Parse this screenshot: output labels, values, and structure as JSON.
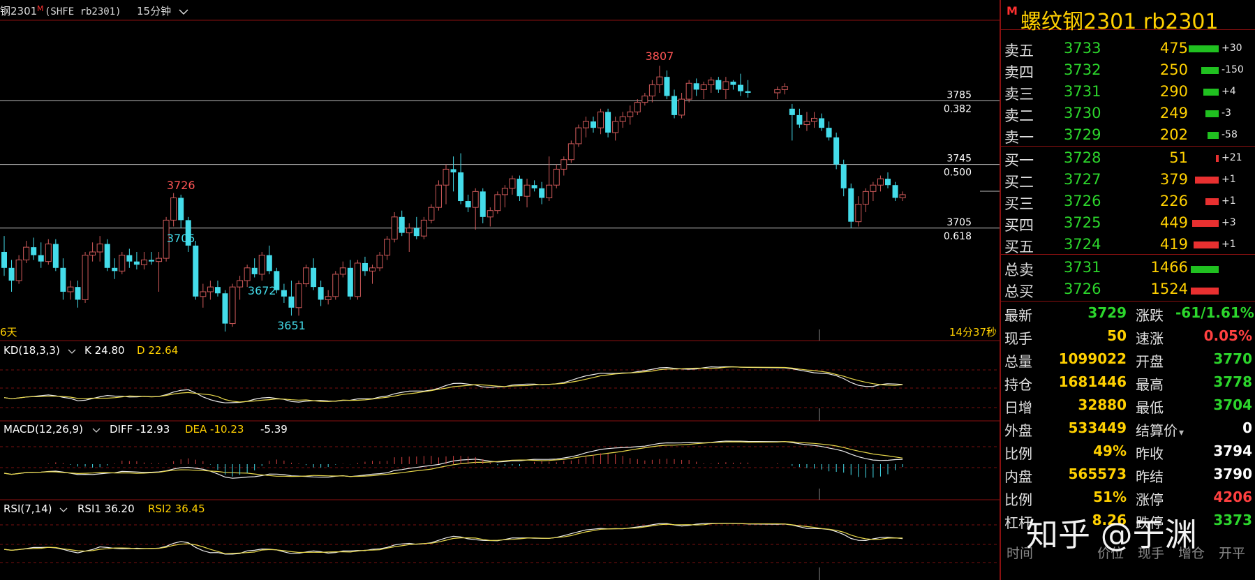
{
  "header": {
    "symbol_label": "钢2301",
    "m_mark": "M",
    "exchange_code": "(SHFE rb2301)",
    "period": "15分钟"
  },
  "main_chart": {
    "price_range": [
      3640,
      3822
    ],
    "candles": [
      [
        3690,
        3700,
        3675,
        3680
      ],
      [
        3680,
        3685,
        3665,
        3672
      ],
      [
        3672,
        3688,
        3670,
        3685
      ],
      [
        3685,
        3697,
        3683,
        3693
      ],
      [
        3693,
        3699,
        3685,
        3688
      ],
      [
        3688,
        3696,
        3680,
        3684
      ],
      [
        3684,
        3698,
        3682,
        3695
      ],
      [
        3695,
        3698,
        3678,
        3680
      ],
      [
        3680,
        3686,
        3660,
        3665
      ],
      [
        3665,
        3672,
        3660,
        3668
      ],
      [
        3668,
        3672,
        3655,
        3660
      ],
      [
        3660,
        3690,
        3658,
        3688
      ],
      [
        3688,
        3696,
        3684,
        3690
      ],
      [
        3690,
        3700,
        3684,
        3695
      ],
      [
        3695,
        3698,
        3678,
        3680
      ],
      [
        3680,
        3686,
        3673,
        3678
      ],
      [
        3678,
        3690,
        3676,
        3688
      ],
      [
        3688,
        3692,
        3680,
        3684
      ],
      [
        3684,
        3690,
        3679,
        3682
      ],
      [
        3682,
        3690,
        3679,
        3685
      ],
      [
        3685,
        3690,
        3682,
        3684
      ],
      [
        3684,
        3690,
        3665,
        3686
      ],
      [
        3686,
        3712,
        3684,
        3710
      ],
      [
        3710,
        3727,
        3706,
        3724
      ],
      [
        3724,
        3726,
        3705,
        3710
      ],
      [
        3710,
        3712,
        3690,
        3694
      ],
      [
        3694,
        3697,
        3660,
        3662
      ],
      [
        3662,
        3670,
        3655,
        3665
      ],
      [
        3665,
        3672,
        3660,
        3668
      ],
      [
        3668,
        3672,
        3662,
        3664
      ],
      [
        3664,
        3666,
        3640,
        3645
      ],
      [
        3645,
        3670,
        3643,
        3668
      ],
      [
        3668,
        3675,
        3660,
        3672
      ],
      [
        3672,
        3682,
        3668,
        3680
      ],
      [
        3680,
        3686,
        3674,
        3676
      ],
      [
        3676,
        3690,
        3672,
        3688
      ],
      [
        3688,
        3694,
        3676,
        3678
      ],
      [
        3678,
        3680,
        3664,
        3666
      ],
      [
        3666,
        3670,
        3658,
        3662
      ],
      [
        3662,
        3672,
        3650,
        3655
      ],
      [
        3655,
        3672,
        3650,
        3670
      ],
      [
        3670,
        3682,
        3668,
        3680
      ],
      [
        3680,
        3686,
        3666,
        3668
      ],
      [
        3668,
        3672,
        3656,
        3660
      ],
      [
        3660,
        3666,
        3657,
        3662
      ],
      [
        3662,
        3678,
        3660,
        3676
      ],
      [
        3676,
        3684,
        3674,
        3680
      ],
      [
        3680,
        3685,
        3660,
        3662
      ],
      [
        3662,
        3685,
        3660,
        3683
      ],
      [
        3683,
        3687,
        3675,
        3678
      ],
      [
        3678,
        3682,
        3670,
        3680
      ],
      [
        3680,
        3690,
        3678,
        3688
      ],
      [
        3688,
        3700,
        3685,
        3698
      ],
      [
        3698,
        3715,
        3696,
        3712
      ],
      [
        3712,
        3716,
        3700,
        3702
      ],
      [
        3702,
        3708,
        3690,
        3705
      ],
      [
        3705,
        3712,
        3698,
        3700
      ],
      [
        3700,
        3712,
        3698,
        3710
      ],
      [
        3710,
        3720,
        3708,
        3718
      ],
      [
        3718,
        3735,
        3716,
        3732
      ],
      [
        3732,
        3745,
        3720,
        3742
      ],
      [
        3742,
        3750,
        3728,
        3740
      ],
      [
        3740,
        3752,
        3720,
        3722
      ],
      [
        3722,
        3726,
        3715,
        3718
      ],
      [
        3718,
        3730,
        3704,
        3728
      ],
      [
        3728,
        3730,
        3708,
        3712
      ],
      [
        3712,
        3718,
        3706,
        3716
      ],
      [
        3716,
        3728,
        3714,
        3726
      ],
      [
        3726,
        3732,
        3718,
        3730
      ],
      [
        3730,
        3738,
        3726,
        3736
      ],
      [
        3736,
        3738,
        3722,
        3725
      ],
      [
        3725,
        3736,
        3718,
        3732
      ],
      [
        3732,
        3735,
        3728,
        3730
      ],
      [
        3730,
        3734,
        3720,
        3724
      ],
      [
        3724,
        3750,
        3722,
        3732
      ],
      [
        3732,
        3745,
        3730,
        3742
      ],
      [
        3742,
        3750,
        3738,
        3748
      ],
      [
        3748,
        3760,
        3746,
        3758
      ],
      [
        3758,
        3770,
        3756,
        3768
      ],
      [
        3768,
        3775,
        3762,
        3772
      ],
      [
        3772,
        3775,
        3765,
        3768
      ],
      [
        3768,
        3780,
        3764,
        3778
      ],
      [
        3778,
        3780,
        3762,
        3765
      ],
      [
        3765,
        3775,
        3760,
        3772
      ],
      [
        3772,
        3778,
        3768,
        3775
      ],
      [
        3775,
        3782,
        3770,
        3778
      ],
      [
        3778,
        3786,
        3776,
        3784
      ],
      [
        3784,
        3790,
        3782,
        3788
      ],
      [
        3788,
        3798,
        3784,
        3795
      ],
      [
        3795,
        3807,
        3790,
        3800
      ],
      [
        3800,
        3804,
        3786,
        3788
      ],
      [
        3788,
        3792,
        3774,
        3776
      ],
      [
        3776,
        3790,
        3774,
        3786
      ],
      [
        3786,
        3798,
        3784,
        3796
      ],
      [
        3796,
        3799,
        3788,
        3792
      ],
      [
        3792,
        3797,
        3786,
        3795
      ],
      [
        3795,
        3800,
        3790,
        3798
      ],
      [
        3798,
        3800,
        3790,
        3792
      ],
      [
        3792,
        3800,
        3786,
        3797
      ],
      [
        3797,
        3798,
        3792,
        3795
      ],
      [
        3795,
        3802,
        3788,
        3791
      ],
      [
        3791,
        3798,
        3787,
        3790
      ],
      [
        3790,
        3794,
        3786,
        3792
      ],
      [
        3792,
        3796,
        3789,
        3794
      ],
      [
        3780,
        3783,
        3760,
        3776
      ],
      [
        3776,
        3780,
        3768,
        3770
      ],
      [
        3770,
        3778,
        3766,
        3772
      ],
      [
        3772,
        3778,
        3768,
        3774
      ],
      [
        3774,
        3777,
        3766,
        3768
      ],
      [
        3768,
        3772,
        3760,
        3762
      ],
      [
        3762,
        3765,
        3742,
        3745
      ],
      [
        3745,
        3748,
        3725,
        3730
      ],
      [
        3730,
        3733,
        3705,
        3709
      ],
      [
        3709,
        3725,
        3706,
        3720
      ],
      [
        3720,
        3730,
        3715,
        3728
      ],
      [
        3728,
        3734,
        3722,
        3732
      ],
      [
        3732,
        3738,
        3728,
        3736
      ],
      [
        3736,
        3740,
        3730,
        3732
      ],
      [
        3732,
        3734,
        3722,
        3724
      ],
      [
        3724,
        3728,
        3722,
        3726
      ]
    ],
    "hlines": [
      {
        "price": 3785,
        "label": "3785",
        "ratio": "0.382"
      },
      {
        "price": 3745,
        "label": "3745",
        "ratio": "0.500"
      },
      {
        "price": 3705,
        "label": "3705",
        "ratio": "0.618"
      }
    ],
    "extremes": [
      {
        "label": "3807",
        "type": "high"
      },
      {
        "label": "3726",
        "type": "high"
      },
      {
        "label": "3672",
        "type": "low"
      },
      {
        "label": "3651",
        "type": "low"
      },
      {
        "label": "3705",
        "type": "low"
      }
    ],
    "bottom_left": "6天",
    "countdown": "14分37秒"
  },
  "kd": {
    "name": "KD(18,3,3)",
    "k_label": "K 24.80",
    "d_label": "D 22.64"
  },
  "macd": {
    "name": "MACD(12,26,9)",
    "diff_label": "DIFF -12.93",
    "dea_label": "DEA -10.23",
    "macd_label": "-5.39"
  },
  "rsi": {
    "name": "RSI(7,14)",
    "rsi1_label": "RSI1 36.20",
    "rsi2_label": "RSI2 36.45"
  },
  "right_panel": {
    "m_mark": "M",
    "title": "螺纹钢2301  rb2301",
    "asks": [
      {
        "label": "卖五",
        "price": "3733",
        "vol": "475",
        "chg": "+30",
        "bar": 0.7,
        "color": "#20c020"
      },
      {
        "label": "卖四",
        "price": "3732",
        "vol": "250",
        "chg": "-150",
        "bar": 0.4,
        "color": "#20c020"
      },
      {
        "label": "卖三",
        "price": "3731",
        "vol": "290",
        "chg": "+4",
        "bar": 0.35,
        "color": "#20c020"
      },
      {
        "label": "卖二",
        "price": "3730",
        "vol": "249",
        "chg": "-3",
        "bar": 0.3,
        "color": "#20c020"
      },
      {
        "label": "卖一",
        "price": "3729",
        "vol": "202",
        "chg": "-58",
        "bar": 0.25,
        "color": "#20c020"
      }
    ],
    "bids": [
      {
        "label": "买一",
        "price": "3728",
        "vol": "51",
        "chg": "+21",
        "bar": 0.05,
        "color": "#e83030"
      },
      {
        "label": "买二",
        "price": "3727",
        "vol": "379",
        "chg": "+1",
        "bar": 0.55,
        "color": "#e83030"
      },
      {
        "label": "买三",
        "price": "3726",
        "vol": "226",
        "chg": "+1",
        "bar": 0.3,
        "color": "#e83030"
      },
      {
        "label": "买四",
        "price": "3725",
        "vol": "449",
        "chg": "+3",
        "bar": 0.62,
        "color": "#e83030"
      },
      {
        "label": "买五",
        "price": "3724",
        "vol": "419",
        "chg": "+1",
        "bar": 0.58,
        "color": "#e83030"
      }
    ],
    "totals": [
      {
        "label": "总卖",
        "price": "3731",
        "vol": "1466",
        "bar": 0.65,
        "color": "#20c020"
      },
      {
        "label": "总买",
        "price": "3726",
        "vol": "1524",
        "bar": 0.65,
        "color": "#e83030"
      }
    ],
    "stats": [
      {
        "l1": "最新",
        "v1": "3729",
        "c1": "#2cd62c",
        "l2": "涨跌",
        "v2": "-61/1.61%",
        "c2": "#2cd62c"
      },
      {
        "l1": "现手",
        "v1": "50",
        "c1": "#ffd000",
        "l2": "速涨",
        "v2": "0.05%",
        "c2": "#ff4040"
      },
      {
        "l1": "总量",
        "v1": "1099022",
        "c1": "#ffd000",
        "l2": "开盘",
        "v2": "3770",
        "c2": "#2cd62c"
      },
      {
        "l1": "持仓",
        "v1": "1681446",
        "c1": "#ffd000",
        "l2": "最高",
        "v2": "3778",
        "c2": "#2cd62c"
      },
      {
        "l1": "日增",
        "v1": "32880",
        "c1": "#ffd000",
        "l2": "最低",
        "v2": "3704",
        "c2": "#2cd62c"
      },
      {
        "l1": "外盘",
        "v1": "533449",
        "c1": "#ffd000",
        "l2": "结算价",
        "v2": "0",
        "c2": "#ffffff"
      },
      {
        "l1": "比例",
        "v1": "49%",
        "c1": "#ffd000",
        "l2": "昨收",
        "v2": "3794",
        "c2": "#ffffff"
      },
      {
        "l1": "内盘",
        "v1": "565573",
        "c1": "#ffd000",
        "l2": "昨结",
        "v2": "3790",
        "c2": "#ffffff"
      },
      {
        "l1": "比例",
        "v1": "51%",
        "c1": "#ffd000",
        "l2": "涨停",
        "v2": "4206",
        "c2": "#ff4040"
      },
      {
        "l1": "杠杆",
        "v1": "8.26",
        "c1": "#ffd000",
        "l2": "跌停",
        "v2": "3373",
        "c2": "#2cd62c"
      }
    ],
    "settle_arrow": "▾",
    "tabs": [
      "时间",
      "价位",
      "现手",
      "增仓",
      "开平"
    ]
  },
  "watermark": "知乎 @于渊"
}
